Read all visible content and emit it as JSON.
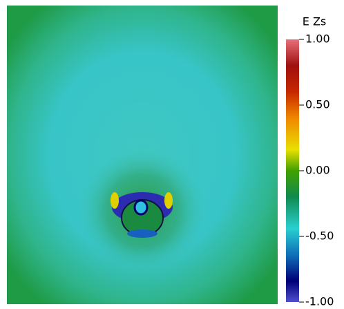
{
  "chart_data": {
    "type": "colorbar",
    "title": "E Zs",
    "clim": [
      -1,
      1
    ],
    "cticks": [
      {
        "value": 1,
        "label": "1.00"
      },
      {
        "value": 0.5,
        "label": "0.50"
      },
      {
        "value": 0,
        "label": "0.00"
      },
      {
        "value": -0.5,
        "label": "-0.50"
      },
      {
        "value": -1,
        "label": "-1.00"
      }
    ]
  }
}
